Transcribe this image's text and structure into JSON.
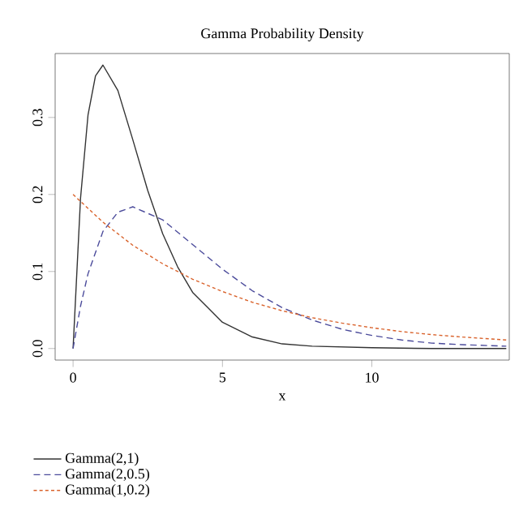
{
  "chart_data": {
    "type": "line",
    "title": "Gamma Probability Density",
    "xlabel": "x",
    "xlim": [
      -0.6,
      14.6
    ],
    "ylim": [
      -0.015,
      0.383
    ],
    "xticks": [
      0,
      5,
      10
    ],
    "yticks": [
      {
        "value": 0,
        "label": "0.0"
      },
      {
        "value": 0.1,
        "label": "0.1"
      },
      {
        "value": 0.2,
        "label": "0.2"
      },
      {
        "value": 0.3,
        "label": "0.3"
      }
    ],
    "grid": false,
    "legend": "bottom left",
    "marker": "none",
    "series": [
      {
        "name": "Gamma(2,1)",
        "color": "#333333",
        "line_style": "solid",
        "x": [
          0,
          0.25,
          0.5,
          0.75,
          1,
          1.5,
          2,
          2.5,
          3,
          3.5,
          4,
          5,
          6,
          7,
          8,
          10,
          12,
          14.5
        ],
        "values": [
          0,
          0.195,
          0.303,
          0.354,
          0.368,
          0.335,
          0.271,
          0.205,
          0.149,
          0.106,
          0.073,
          0.034,
          0.015,
          0.006,
          0.003,
          0.001,
          0,
          0
        ]
      },
      {
        "name": "Gamma(2,0.5)",
        "color": "#4b4b9b",
        "line_style": "dashed",
        "x": [
          0,
          0.25,
          0.5,
          1,
          1.5,
          2,
          3,
          4,
          5,
          6,
          7,
          8,
          9,
          10,
          11,
          12,
          13,
          14.5
        ],
        "values": [
          0,
          0.055,
          0.097,
          0.152,
          0.177,
          0.184,
          0.167,
          0.135,
          0.103,
          0.075,
          0.053,
          0.037,
          0.025,
          0.017,
          0.011,
          0.007,
          0.005,
          0.003
        ]
      },
      {
        "name": "Gamma(1,0.2)",
        "color": "#d9622b",
        "line_style": "dotted",
        "x": [
          0,
          1,
          2,
          3,
          4,
          5,
          6,
          7,
          8,
          9,
          10,
          11,
          12,
          13,
          14.5
        ],
        "values": [
          0.2,
          0.164,
          0.134,
          0.11,
          0.09,
          0.074,
          0.06,
          0.049,
          0.04,
          0.033,
          0.027,
          0.022,
          0.018,
          0.015,
          0.011
        ]
      }
    ]
  }
}
